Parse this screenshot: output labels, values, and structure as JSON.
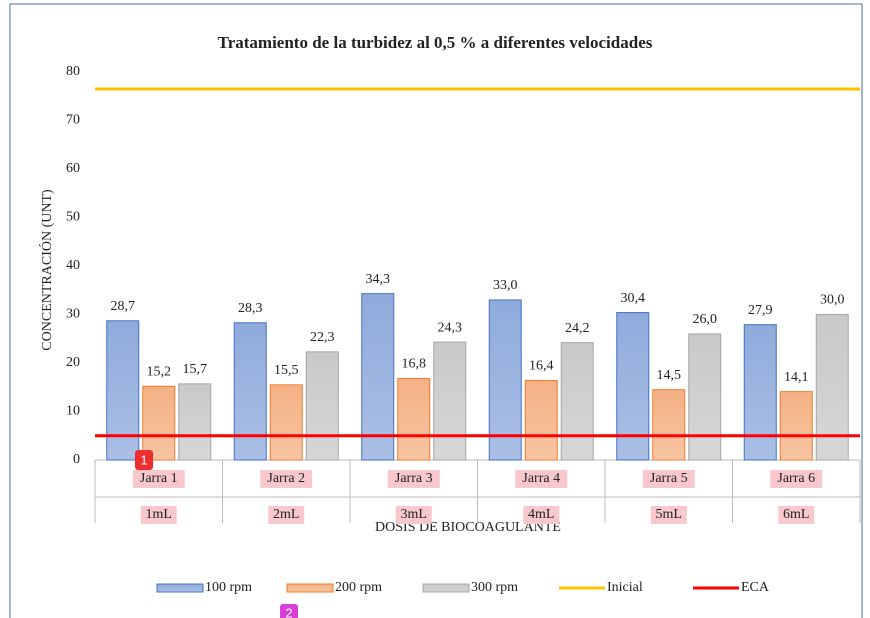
{
  "chart_data": {
    "type": "bar",
    "title": "Tratamiento de la turbidez al 0,5 % a diferentes velocidades",
    "x_label": "DOSIS DE BIOCOAGULANTE",
    "y_label": "CONCENTRACIÓN (UNT)",
    "categories": [
      "Jarra 1",
      "Jarra 2",
      "Jarra 3",
      "Jarra 4",
      "Jarra 5",
      "Jarra 6"
    ],
    "subcategories": [
      "1mL",
      "2mL",
      "3mL",
      "4mL",
      "5mL",
      "6mL"
    ],
    "series": [
      {
        "name": "100 rpm",
        "type": "bar",
        "color": "#8faadc",
        "values": [
          28.7,
          28.3,
          34.3,
          33.0,
          30.4,
          27.9
        ],
        "value_labels": [
          "28,7",
          "28,3",
          "34,3",
          "33,0",
          "30,4",
          "27,9"
        ]
      },
      {
        "name": "200 rpm",
        "type": "bar",
        "color": "#f4b183",
        "values": [
          15.2,
          15.5,
          16.8,
          16.4,
          14.5,
          14.1
        ],
        "value_labels": [
          "15,2",
          "15,5",
          "16,8",
          "16,4",
          "14,5",
          "14,1"
        ]
      },
      {
        "name": "300 rpm",
        "type": "bar",
        "color": "#c9c9c9",
        "values": [
          15.7,
          22.3,
          24.3,
          24.2,
          26.0,
          30.0
        ],
        "value_labels": [
          "15,7",
          "22,3",
          "24,3",
          "24,2",
          "26,0",
          "30,0"
        ]
      },
      {
        "name": "Inicial",
        "type": "line",
        "color": "#ffc000",
        "values": [
          76.5,
          76.5,
          76.5,
          76.5,
          76.5,
          76.5
        ]
      },
      {
        "name": "ECA",
        "type": "line",
        "color": "#ff0000",
        "values": [
          5,
          5,
          5,
          5,
          5,
          5
        ]
      }
    ],
    "ylim": [
      0,
      80
    ],
    "yticks": [
      0,
      10,
      20,
      30,
      40,
      50,
      60,
      70,
      80
    ],
    "grid": false,
    "legend": "bottom"
  },
  "markers": [
    "1",
    "2"
  ]
}
